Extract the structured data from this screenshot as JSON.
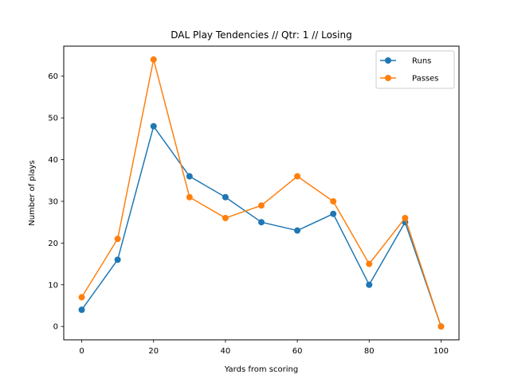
{
  "chart_data": {
    "type": "line",
    "title": "DAL Play Tendencies // Qtr: 1 // Losing",
    "xlabel": "Yards from scoring",
    "ylabel": "Number of plays",
    "x": [
      0,
      10,
      20,
      30,
      40,
      50,
      60,
      70,
      80,
      90,
      100
    ],
    "xlim": [
      -5,
      105
    ],
    "ylim": [
      -3.2,
      67.2
    ],
    "xticks": [
      "0",
      "20",
      "40",
      "60",
      "80",
      "100"
    ],
    "yticks": [
      "0",
      "10",
      "20",
      "30",
      "40",
      "50",
      "60"
    ],
    "grid": false,
    "legend_position": "top-right",
    "series": [
      {
        "name": "Runs",
        "color": "#1f77b4",
        "values": [
          4,
          16,
          48,
          36,
          31,
          25,
          23,
          27,
          10,
          25,
          0
        ]
      },
      {
        "name": "Passes",
        "color": "#ff7f0e",
        "values": [
          7,
          21,
          64,
          31,
          26,
          29,
          36,
          30,
          15,
          26,
          0
        ]
      }
    ]
  }
}
